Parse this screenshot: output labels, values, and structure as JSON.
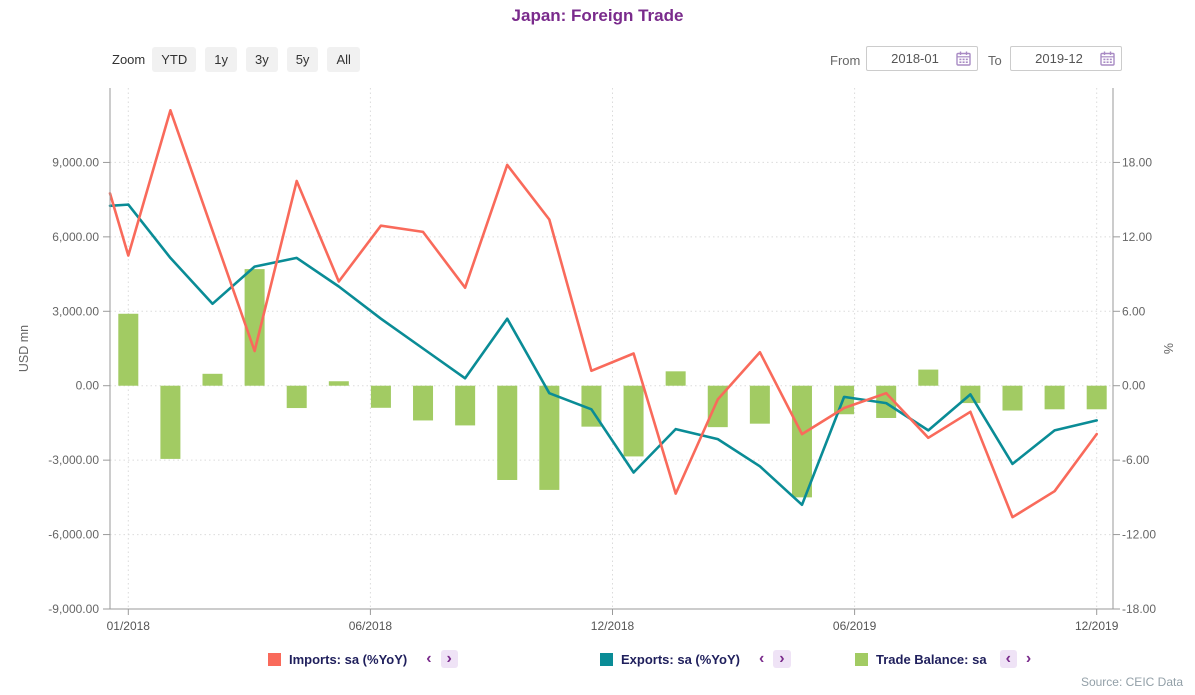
{
  "title": "Japan: Foreign Trade",
  "toolbar": {
    "zoom_label": "Zoom",
    "buttons": [
      "YTD",
      "1y",
      "3y",
      "5y",
      "All"
    ],
    "from_label": "From",
    "from_value": "2018-01",
    "to_label": "To",
    "to_value": "2019-12"
  },
  "colors": {
    "title": "#7A2B8C",
    "imports": "#F96A5B",
    "exports": "#0A8C96",
    "trade_balance": "#A2CB63",
    "accent_purple": "#7A2B8C",
    "pill_bg": "#EFE3F6",
    "gridline": "#DBDBDB",
    "axis": "#9A9A9A",
    "axis_text": "#666666"
  },
  "chart_data": {
    "type": "mixed",
    "title": "Japan: Foreign Trade",
    "x_categories": [
      "01/2018",
      "02/2018",
      "03/2018",
      "04/2018",
      "05/2018",
      "06/2018",
      "07/2018",
      "08/2018",
      "09/2018",
      "10/2018",
      "11/2018",
      "12/2018",
      "01/2019",
      "02/2019",
      "03/2019",
      "04/2019",
      "05/2019",
      "06/2019",
      "07/2019",
      "08/2019",
      "09/2019",
      "10/2019",
      "11/2019",
      "12/2019"
    ],
    "x_tick_labels": [
      "01/2018",
      "06/2018",
      "12/2018",
      "06/2019",
      "12/2019"
    ],
    "left_axis": {
      "title": "USD mn",
      "min": -9000,
      "max": 12000,
      "ticks": [
        9000,
        6000,
        3000,
        0,
        -3000,
        -6000,
        -9000
      ],
      "tick_labels": [
        "9,000.00",
        "6,000.00",
        "3,000.00",
        "0.00",
        "-3,000.00",
        "-6,000.00",
        "-9,000.00"
      ]
    },
    "right_axis": {
      "title": "%",
      "min": -18,
      "max": 24,
      "ticks": [
        18,
        12,
        6,
        0,
        -6,
        -12,
        -18
      ],
      "tick_labels": [
        "18.00",
        "12.00",
        "6.00",
        "0.00",
        "-6.00",
        "-12.00",
        "-18.00"
      ]
    },
    "grid": "dotted",
    "series": [
      {
        "name": "Imports: sa (%YoY)",
        "type": "line",
        "axis": "right",
        "color": "#F96A5B",
        "edge_value": 15.5,
        "values": [
          10.5,
          22.2,
          12.5,
          2.8,
          16.5,
          8.4,
          12.9,
          12.4,
          7.9,
          17.8,
          13.4,
          1.2,
          2.6,
          -8.7,
          -1.1,
          2.7,
          -3.9,
          -1.8,
          -0.6,
          -4.2,
          -2.1,
          -10.6,
          -8.5,
          -3.9
        ]
      },
      {
        "name": "Exports: sa (%YoY)",
        "type": "line",
        "axis": "right",
        "color": "#0A8C96",
        "edge_value": 14.5,
        "values": [
          14.6,
          10.3,
          6.6,
          9.6,
          10.3,
          8.0,
          5.4,
          3.0,
          0.6,
          5.4,
          -0.6,
          -1.9,
          -7.0,
          -3.5,
          -4.3,
          -6.5,
          -9.6,
          -0.9,
          -1.4,
          -3.6,
          -0.7,
          -6.3,
          -3.6,
          -2.8
        ]
      },
      {
        "name": "Trade Balance: sa",
        "type": "column",
        "axis": "left",
        "color": "#A2CB63",
        "values": [
          2900,
          -2950,
          480,
          4700,
          -900,
          180,
          -890,
          -1400,
          -1600,
          -3800,
          -4200,
          -1650,
          -2850,
          580,
          -1670,
          -1530,
          -4500,
          -1150,
          -1300,
          650,
          -700,
          -1000,
          -950,
          -950
        ]
      }
    ],
    "legend_position": "bottom"
  },
  "legend": {
    "prev_icon": "‹",
    "next_icon": "›",
    "items": [
      {
        "label": "Imports: sa (%YoY)",
        "color": "#F96A5B",
        "prev_active": false,
        "next_active": true
      },
      {
        "label": "Exports: sa (%YoY)",
        "color": "#0A8C96",
        "prev_active": false,
        "next_active": true
      },
      {
        "label": "Trade Balance: sa",
        "color": "#A2CB63",
        "prev_active": true,
        "next_active": false
      }
    ]
  },
  "source": "Source: CEIC Data"
}
